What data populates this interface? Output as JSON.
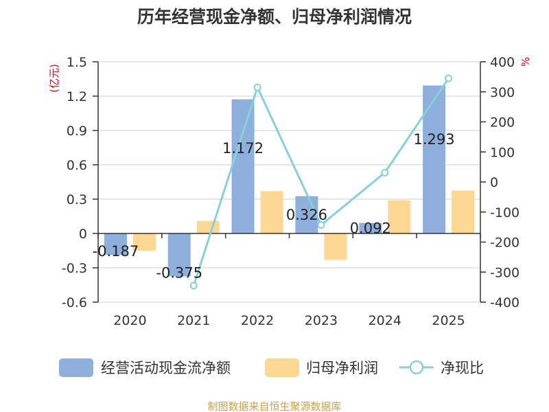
{
  "title": "历年经营现金净额、归母净利润情况",
  "source": "制图数据来自恒生聚源数据库",
  "colors": {
    "cash": "#8eaedb",
    "profit": "#fdd794",
    "ratio": "#88d0d8",
    "grid": "#cccccc",
    "axis": "#333333"
  },
  "chart_data": {
    "type": "bar+line",
    "title": "历年经营现金净额、归母净利润情况",
    "categories": [
      "2020",
      "2021",
      "2022",
      "2023",
      "2024",
      "2025"
    ],
    "y_left": {
      "unit": "(亿元)",
      "range": [
        -0.6,
        1.5
      ],
      "ticks": [
        "1.5",
        "1.2",
        "0.9",
        "0.6",
        "0.3",
        "0",
        "-0.3",
        "-0.6"
      ],
      "tick_values": [
        1.5,
        1.2,
        0.9,
        0.6,
        0.3,
        0,
        -0.3,
        -0.6
      ]
    },
    "y_right": {
      "unit": "%",
      "range": [
        -400,
        400
      ],
      "ticks": [
        "400",
        "300",
        "200",
        "100",
        "0",
        "-100",
        "-200",
        "-300",
        "-400"
      ],
      "tick_values": [
        400,
        300,
        200,
        100,
        0,
        -100,
        -200,
        -300,
        -400
      ]
    },
    "series": [
      {
        "name": "经营活动现金流净额",
        "type": "bar",
        "axis": "left",
        "values": [
          -0.187,
          -0.375,
          1.172,
          0.326,
          0.092,
          1.293
        ],
        "labels": [
          "-0.187",
          "-0.375",
          "1.172",
          "0.326",
          "0.092",
          "1.293"
        ]
      },
      {
        "name": "归母净利润",
        "type": "bar",
        "axis": "left",
        "values": [
          -0.15,
          0.11,
          0.37,
          -0.23,
          0.29,
          0.375
        ]
      },
      {
        "name": "净现比",
        "type": "line",
        "axis": "right",
        "values": [
          null,
          -345,
          315,
          -143,
          31,
          345
        ]
      }
    ],
    "legend_position": "bottom"
  }
}
